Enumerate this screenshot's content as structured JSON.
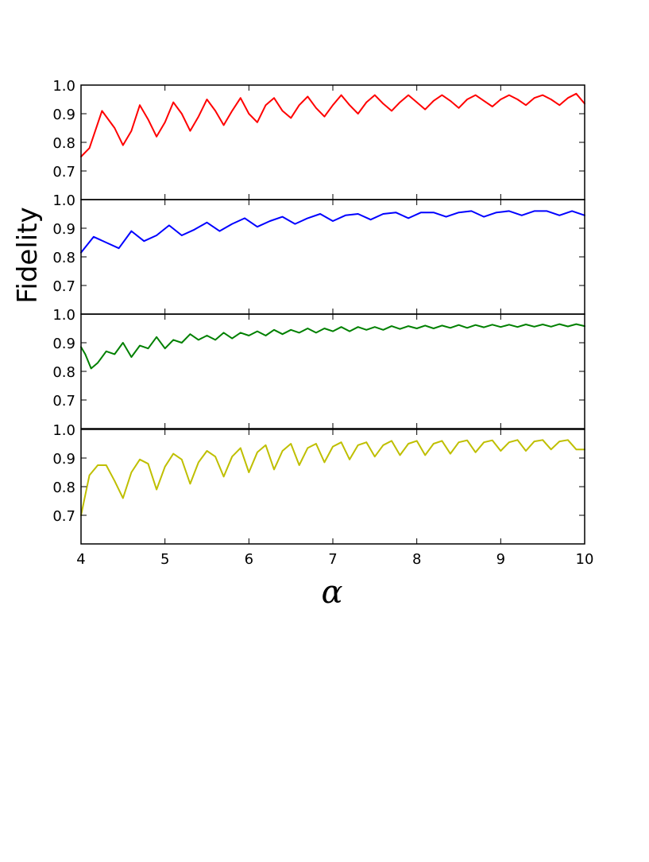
{
  "figure": {
    "ylabel": "Fidelity",
    "xlabel": "α",
    "x_ticks": [
      "4",
      "5",
      "6",
      "7",
      "8",
      "9",
      "10"
    ]
  },
  "chart_data": [
    {
      "type": "line",
      "series": [
        {
          "color": "#ff0000",
          "x": [
            4.0,
            4.1,
            4.25,
            4.4,
            4.5,
            4.6,
            4.7,
            4.8,
            4.9,
            5.0,
            5.1,
            5.2,
            5.3,
            5.4,
            5.5,
            5.6,
            5.7,
            5.8,
            5.9,
            6.0,
            6.1,
            6.2,
            6.3,
            6.4,
            6.5,
            6.6,
            6.7,
            6.8,
            6.9,
            7.0,
            7.1,
            7.2,
            7.3,
            7.4,
            7.5,
            7.6,
            7.7,
            7.8,
            7.9,
            8.0,
            8.1,
            8.2,
            8.3,
            8.4,
            8.5,
            8.6,
            8.7,
            8.8,
            8.9,
            9.0,
            9.1,
            9.2,
            9.3,
            9.4,
            9.5,
            9.6,
            9.7,
            9.8,
            9.9,
            10.0
          ],
          "y": [
            0.75,
            0.78,
            0.91,
            0.85,
            0.79,
            0.84,
            0.93,
            0.88,
            0.82,
            0.87,
            0.94,
            0.9,
            0.84,
            0.89,
            0.95,
            0.91,
            0.86,
            0.91,
            0.955,
            0.9,
            0.87,
            0.93,
            0.955,
            0.91,
            0.885,
            0.93,
            0.96,
            0.92,
            0.89,
            0.93,
            0.965,
            0.93,
            0.9,
            0.94,
            0.965,
            0.935,
            0.91,
            0.94,
            0.965,
            0.94,
            0.915,
            0.945,
            0.965,
            0.945,
            0.92,
            0.95,
            0.965,
            0.945,
            0.925,
            0.95,
            0.965,
            0.95,
            0.93,
            0.955,
            0.965,
            0.95,
            0.93,
            0.955,
            0.97,
            0.935
          ]
        }
      ],
      "ylim": [
        0.6,
        1.0
      ],
      "y_ticks": [
        "0.7",
        "0.8",
        "0.9",
        "1.0"
      ]
    },
    {
      "type": "line",
      "series": [
        {
          "color": "#0000ff",
          "x": [
            4.0,
            4.15,
            4.3,
            4.45,
            4.6,
            4.75,
            4.9,
            5.05,
            5.2,
            5.35,
            5.5,
            5.65,
            5.8,
            5.95,
            6.1,
            6.25,
            6.4,
            6.55,
            6.7,
            6.85,
            7.0,
            7.15,
            7.3,
            7.45,
            7.6,
            7.75,
            7.9,
            8.05,
            8.2,
            8.35,
            8.5,
            8.65,
            8.8,
            8.95,
            9.1,
            9.25,
            9.4,
            9.55,
            9.7,
            9.85,
            10.0
          ],
          "y": [
            0.815,
            0.87,
            0.85,
            0.83,
            0.89,
            0.855,
            0.875,
            0.91,
            0.875,
            0.895,
            0.92,
            0.89,
            0.915,
            0.935,
            0.905,
            0.925,
            0.94,
            0.915,
            0.935,
            0.95,
            0.925,
            0.945,
            0.95,
            0.93,
            0.95,
            0.955,
            0.935,
            0.955,
            0.955,
            0.94,
            0.955,
            0.96,
            0.94,
            0.955,
            0.96,
            0.945,
            0.96,
            0.96,
            0.945,
            0.96,
            0.945
          ]
        }
      ],
      "ylim": [
        0.6,
        1.0
      ],
      "y_ticks": [
        "0.7",
        "0.8",
        "0.9",
        "1.0"
      ]
    },
    {
      "type": "line",
      "series": [
        {
          "color": "#008000",
          "x": [
            4.0,
            4.05,
            4.12,
            4.2,
            4.3,
            4.4,
            4.5,
            4.6,
            4.7,
            4.8,
            4.9,
            5.0,
            5.1,
            5.2,
            5.3,
            5.4,
            5.5,
            5.6,
            5.7,
            5.8,
            5.9,
            6.0,
            6.1,
            6.2,
            6.3,
            6.4,
            6.5,
            6.6,
            6.7,
            6.8,
            6.9,
            7.0,
            7.1,
            7.2,
            7.3,
            7.4,
            7.5,
            7.6,
            7.7,
            7.8,
            7.9,
            8.0,
            8.1,
            8.2,
            8.3,
            8.4,
            8.5,
            8.6,
            8.7,
            8.8,
            8.9,
            9.0,
            9.1,
            9.2,
            9.3,
            9.4,
            9.5,
            9.6,
            9.7,
            9.8,
            9.9,
            10.0
          ],
          "y": [
            0.885,
            0.86,
            0.81,
            0.83,
            0.87,
            0.86,
            0.9,
            0.85,
            0.89,
            0.88,
            0.92,
            0.88,
            0.91,
            0.9,
            0.93,
            0.91,
            0.925,
            0.91,
            0.935,
            0.915,
            0.935,
            0.925,
            0.94,
            0.925,
            0.945,
            0.93,
            0.945,
            0.935,
            0.95,
            0.935,
            0.95,
            0.94,
            0.955,
            0.94,
            0.955,
            0.945,
            0.955,
            0.945,
            0.958,
            0.948,
            0.958,
            0.95,
            0.96,
            0.95,
            0.96,
            0.952,
            0.962,
            0.952,
            0.962,
            0.954,
            0.963,
            0.955,
            0.963,
            0.955,
            0.964,
            0.956,
            0.964,
            0.956,
            0.965,
            0.957,
            0.965,
            0.958
          ]
        }
      ],
      "ylim": [
        0.6,
        1.0
      ],
      "y_ticks": [
        "0.7",
        "0.8",
        "0.9",
        "1.0"
      ]
    },
    {
      "type": "line",
      "series": [
        {
          "color": "#bfbf00",
          "x": [
            4.0,
            4.1,
            4.2,
            4.3,
            4.4,
            4.5,
            4.6,
            4.7,
            4.8,
            4.9,
            5.0,
            5.1,
            5.2,
            5.3,
            5.4,
            5.5,
            5.6,
            5.7,
            5.8,
            5.9,
            6.0,
            6.1,
            6.2,
            6.3,
            6.4,
            6.5,
            6.6,
            6.7,
            6.8,
            6.9,
            7.0,
            7.1,
            7.2,
            7.3,
            7.4,
            7.5,
            7.6,
            7.7,
            7.8,
            7.9,
            8.0,
            8.1,
            8.2,
            8.3,
            8.4,
            8.5,
            8.6,
            8.7,
            8.8,
            8.9,
            9.0,
            9.1,
            9.2,
            9.3,
            9.4,
            9.5,
            9.6,
            9.7,
            9.8,
            9.9,
            10.0
          ],
          "y": [
            0.7,
            0.84,
            0.875,
            0.875,
            0.82,
            0.76,
            0.85,
            0.895,
            0.88,
            0.79,
            0.87,
            0.915,
            0.895,
            0.81,
            0.885,
            0.925,
            0.905,
            0.835,
            0.905,
            0.935,
            0.85,
            0.92,
            0.945,
            0.86,
            0.925,
            0.95,
            0.875,
            0.935,
            0.95,
            0.885,
            0.94,
            0.955,
            0.895,
            0.945,
            0.955,
            0.905,
            0.945,
            0.96,
            0.91,
            0.95,
            0.96,
            0.91,
            0.95,
            0.96,
            0.915,
            0.955,
            0.962,
            0.92,
            0.955,
            0.962,
            0.925,
            0.955,
            0.963,
            0.925,
            0.958,
            0.963,
            0.93,
            0.958,
            0.963,
            0.93,
            0.93
          ]
        }
      ],
      "ylim": [
        0.6,
        1.0
      ],
      "y_ticks": [
        "0.7",
        "0.8",
        "0.9",
        "1.0"
      ]
    }
  ]
}
